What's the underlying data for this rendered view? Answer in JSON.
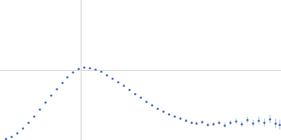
{
  "chart_data": {
    "type": "scatter",
    "x": [
      0.07,
      0.14,
      0.21,
      0.28,
      0.35,
      0.42,
      0.49,
      0.56,
      0.63,
      0.7,
      0.77,
      0.83,
      0.9,
      0.97,
      1.04,
      1.11,
      1.18,
      1.25,
      1.32,
      1.39,
      1.46,
      1.53,
      1.6,
      1.67,
      1.74,
      1.81,
      1.88,
      1.95,
      2.02,
      2.09,
      2.16,
      2.23,
      2.3,
      2.37,
      2.43,
      2.5,
      2.57,
      2.64,
      2.71,
      2.78,
      2.85,
      2.92,
      2.99,
      3.06,
      3.13,
      3.2,
      3.27,
      3.34,
      3.41,
      3.46
    ],
    "values": [
      0.02,
      0.05,
      0.1,
      0.17,
      0.25,
      0.34,
      0.44,
      0.54,
      0.64,
      0.73,
      0.82,
      0.9,
      0.97,
      1.02,
      1.04,
      1.03,
      1.01,
      0.98,
      0.93,
      0.88,
      0.83,
      0.78,
      0.72,
      0.66,
      0.61,
      0.55,
      0.5,
      0.45,
      0.41,
      0.37,
      0.34,
      0.31,
      0.28,
      0.25,
      0.24,
      0.26,
      0.22,
      0.23,
      0.25,
      0.21,
      0.25,
      0.27,
      0.23,
      0.29,
      0.24,
      0.28,
      0.25,
      0.3,
      0.24,
      0.22
    ],
    "error": [
      0.005,
      0.005,
      0.005,
      0.005,
      0.005,
      0.005,
      0.005,
      0.005,
      0.005,
      0.005,
      0.005,
      0.005,
      0.005,
      0.005,
      0.005,
      0.005,
      0.006,
      0.006,
      0.007,
      0.007,
      0.008,
      0.008,
      0.009,
      0.01,
      0.01,
      0.011,
      0.012,
      0.013,
      0.014,
      0.015,
      0.016,
      0.018,
      0.02,
      0.022,
      0.024,
      0.026,
      0.028,
      0.03,
      0.032,
      0.035,
      0.038,
      0.04,
      0.042,
      0.045,
      0.048,
      0.05,
      0.055,
      0.06,
      0.065,
      0.07
    ],
    "color": "#3b66b8",
    "marker": "circle",
    "xlim": [
      0,
      3.48
    ],
    "ylim": [
      0,
      2
    ],
    "xticks": [
      1
    ],
    "yticks": [
      1
    ],
    "grid": true,
    "tick_labels": false
  }
}
